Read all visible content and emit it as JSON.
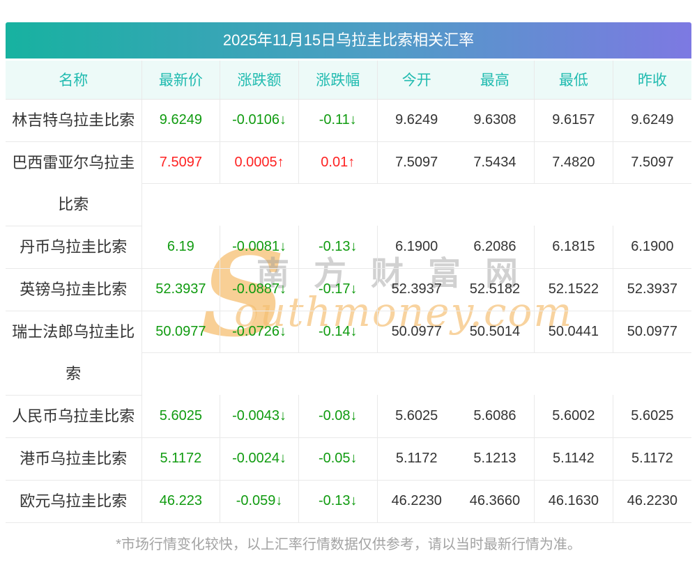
{
  "title": "2025年11月15日乌拉圭比索相关汇率",
  "columns": {
    "name": "名称",
    "latest": "最新价",
    "change": "涨跌额",
    "change_pct": "涨跌幅",
    "open": "今开",
    "high": "最高",
    "low": "最低",
    "prev_close": "昨收"
  },
  "rows": [
    {
      "name": "林吉特乌拉圭比索",
      "latest": "9.6249",
      "change": "-0.0106↓",
      "change_pct": "-0.11↓",
      "open": "9.6249",
      "high": "9.6308",
      "low": "9.6157",
      "prev_close": "9.6249",
      "trend": "down"
    },
    {
      "name": "巴西雷亚尔乌拉圭\n比索",
      "latest": "7.5097",
      "change": "0.0005↑",
      "change_pct": "0.01↑",
      "open": "7.5097",
      "high": "7.5434",
      "low": "7.4820",
      "prev_close": "7.5097",
      "trend": "up"
    },
    {
      "name": "丹币乌拉圭比索",
      "latest": "6.19",
      "change": "-0.0081↓",
      "change_pct": "-0.13↓",
      "open": "6.1900",
      "high": "6.2086",
      "low": "6.1815",
      "prev_close": "6.1900",
      "trend": "down"
    },
    {
      "name": "英镑乌拉圭比索",
      "latest": "52.3937",
      "change": "-0.0887↓",
      "change_pct": "-0.17↓",
      "open": "52.3937",
      "high": "52.5182",
      "low": "52.1522",
      "prev_close": "52.3937",
      "trend": "down"
    },
    {
      "name": "瑞士法郎乌拉圭比\n索",
      "latest": "50.0977",
      "change": "-0.0726↓",
      "change_pct": "-0.14↓",
      "open": "50.0977",
      "high": "50.5014",
      "low": "50.0441",
      "prev_close": "50.0977",
      "trend": "down"
    },
    {
      "name": "人民币乌拉圭比索",
      "latest": "5.6025",
      "change": "-0.0043↓",
      "change_pct": "-0.08↓",
      "open": "5.6025",
      "high": "5.6086",
      "low": "5.6002",
      "prev_close": "5.6025",
      "trend": "down"
    },
    {
      "name": "港币乌拉圭比索",
      "latest": "5.1172",
      "change": "-0.0024↓",
      "change_pct": "-0.05↓",
      "open": "5.1172",
      "high": "5.1213",
      "low": "5.1142",
      "prev_close": "5.1172",
      "trend": "down"
    },
    {
      "name": "欧元乌拉圭比索",
      "latest": "46.223",
      "change": "-0.059↓",
      "change_pct": "-0.13↓",
      "open": "46.2230",
      "high": "46.3660",
      "low": "46.1630",
      "prev_close": "46.2230",
      "trend": "down"
    }
  ],
  "watermark": {
    "s_letter": "S",
    "cn_text": "南方财富网",
    "en_text": "outhmoney.com"
  },
  "footer": {
    "note": "*市场行情变化较快，以上汇率行情数据仅供参考，请以当时最新行情为准。"
  },
  "colors": {
    "title_gradient_start": "#17b2a0",
    "title_gradient_end": "#7d79e2",
    "title_text": "#ffffff",
    "header_bg": "#edfaf8",
    "header_text": "#21bbb0",
    "up_red": "#fe2222",
    "down_green": "#109b10",
    "body_text": "#333333",
    "grid_line": "#e9e9e9",
    "watermark_orange": "#f5bf72",
    "watermark_gray": "#9b9b9b",
    "footer_text": "#a3a3a3"
  }
}
